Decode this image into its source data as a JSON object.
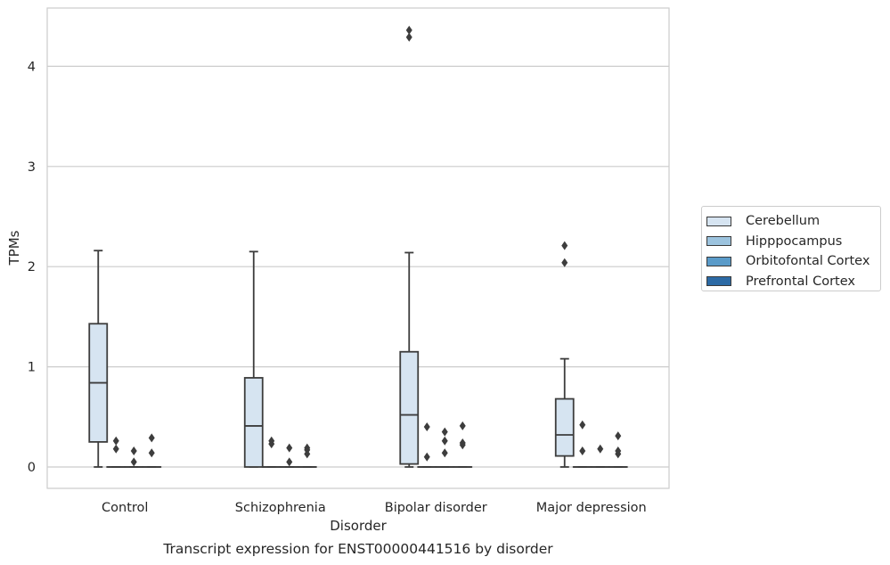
{
  "chart_data": {
    "type": "box",
    "title": "Transcript expression for ENST00000441516 by disorder",
    "xlabel": "Disorder",
    "ylabel": "TPMs",
    "categories": [
      "Control",
      "Schizophrenia",
      "Bipolar disorder",
      "Major depression"
    ],
    "ylim": [
      -0.22,
      4.6
    ],
    "yticks": [
      0,
      1,
      2,
      3,
      4
    ],
    "grid": "horizontal",
    "legend_position": "right",
    "series": [
      {
        "name": "Cerebellum",
        "color": "#d6e4f1",
        "boxes": [
          {
            "whisker_low": 0.0,
            "q1": 0.25,
            "median": 0.84,
            "q3": 1.43,
            "whisker_high": 2.16,
            "outliers": []
          },
          {
            "whisker_low": 0.0,
            "q1": 0.0,
            "median": 0.41,
            "q3": 0.89,
            "whisker_high": 2.15,
            "outliers": []
          },
          {
            "whisker_low": 0.0,
            "q1": 0.03,
            "median": 0.52,
            "q3": 1.15,
            "whisker_high": 2.14,
            "outliers": [
              4.29,
              4.36
            ]
          },
          {
            "whisker_low": 0.0,
            "q1": 0.11,
            "median": 0.32,
            "q3": 0.68,
            "whisker_high": 1.08,
            "outliers": [
              2.04,
              2.21
            ]
          }
        ]
      },
      {
        "name": "Hipppocampus",
        "color": "#9cc3de",
        "boxes": [
          {
            "whisker_low": 0.0,
            "q1": 0.0,
            "median": 0.0,
            "q3": 0.0,
            "whisker_high": 0.0,
            "outliers": [
              0.18,
              0.26
            ]
          },
          {
            "whisker_low": 0.0,
            "q1": 0.0,
            "median": 0.0,
            "q3": 0.0,
            "whisker_high": 0.0,
            "outliers": [
              0.23,
              0.26
            ]
          },
          {
            "whisker_low": 0.0,
            "q1": 0.0,
            "median": 0.0,
            "q3": 0.0,
            "whisker_high": 0.0,
            "outliers": [
              0.1,
              0.4
            ]
          },
          {
            "whisker_low": 0.0,
            "q1": 0.0,
            "median": 0.0,
            "q3": 0.0,
            "whisker_high": 0.0,
            "outliers": [
              0.16,
              0.42
            ]
          }
        ]
      },
      {
        "name": "Orbitofontal Cortex",
        "color": "#5a9bc9",
        "boxes": [
          {
            "whisker_low": 0.0,
            "q1": 0.0,
            "median": 0.0,
            "q3": 0.0,
            "whisker_high": 0.0,
            "outliers": [
              0.05,
              0.16
            ]
          },
          {
            "whisker_low": 0.0,
            "q1": 0.0,
            "median": 0.0,
            "q3": 0.0,
            "whisker_high": 0.0,
            "outliers": [
              0.05,
              0.19
            ]
          },
          {
            "whisker_low": 0.0,
            "q1": 0.0,
            "median": 0.0,
            "q3": 0.0,
            "whisker_high": 0.0,
            "outliers": [
              0.14,
              0.26,
              0.35
            ]
          },
          {
            "whisker_low": 0.0,
            "q1": 0.0,
            "median": 0.0,
            "q3": 0.0,
            "whisker_high": 0.0,
            "outliers": [
              0.18
            ]
          }
        ]
      },
      {
        "name": "Prefrontal Cortex",
        "color": "#2c6aa5",
        "boxes": [
          {
            "whisker_low": 0.0,
            "q1": 0.0,
            "median": 0.0,
            "q3": 0.0,
            "whisker_high": 0.0,
            "outliers": [
              0.14,
              0.29
            ]
          },
          {
            "whisker_low": 0.0,
            "q1": 0.0,
            "median": 0.0,
            "q3": 0.0,
            "whisker_high": 0.0,
            "outliers": [
              0.13,
              0.17,
              0.19
            ]
          },
          {
            "whisker_low": 0.0,
            "q1": 0.0,
            "median": 0.0,
            "q3": 0.0,
            "whisker_high": 0.0,
            "outliers": [
              0.22,
              0.24,
              0.41
            ]
          },
          {
            "whisker_low": 0.0,
            "q1": 0.0,
            "median": 0.0,
            "q3": 0.0,
            "whisker_high": 0.0,
            "outliers": [
              0.13,
              0.16,
              0.31
            ]
          }
        ]
      }
    ]
  }
}
